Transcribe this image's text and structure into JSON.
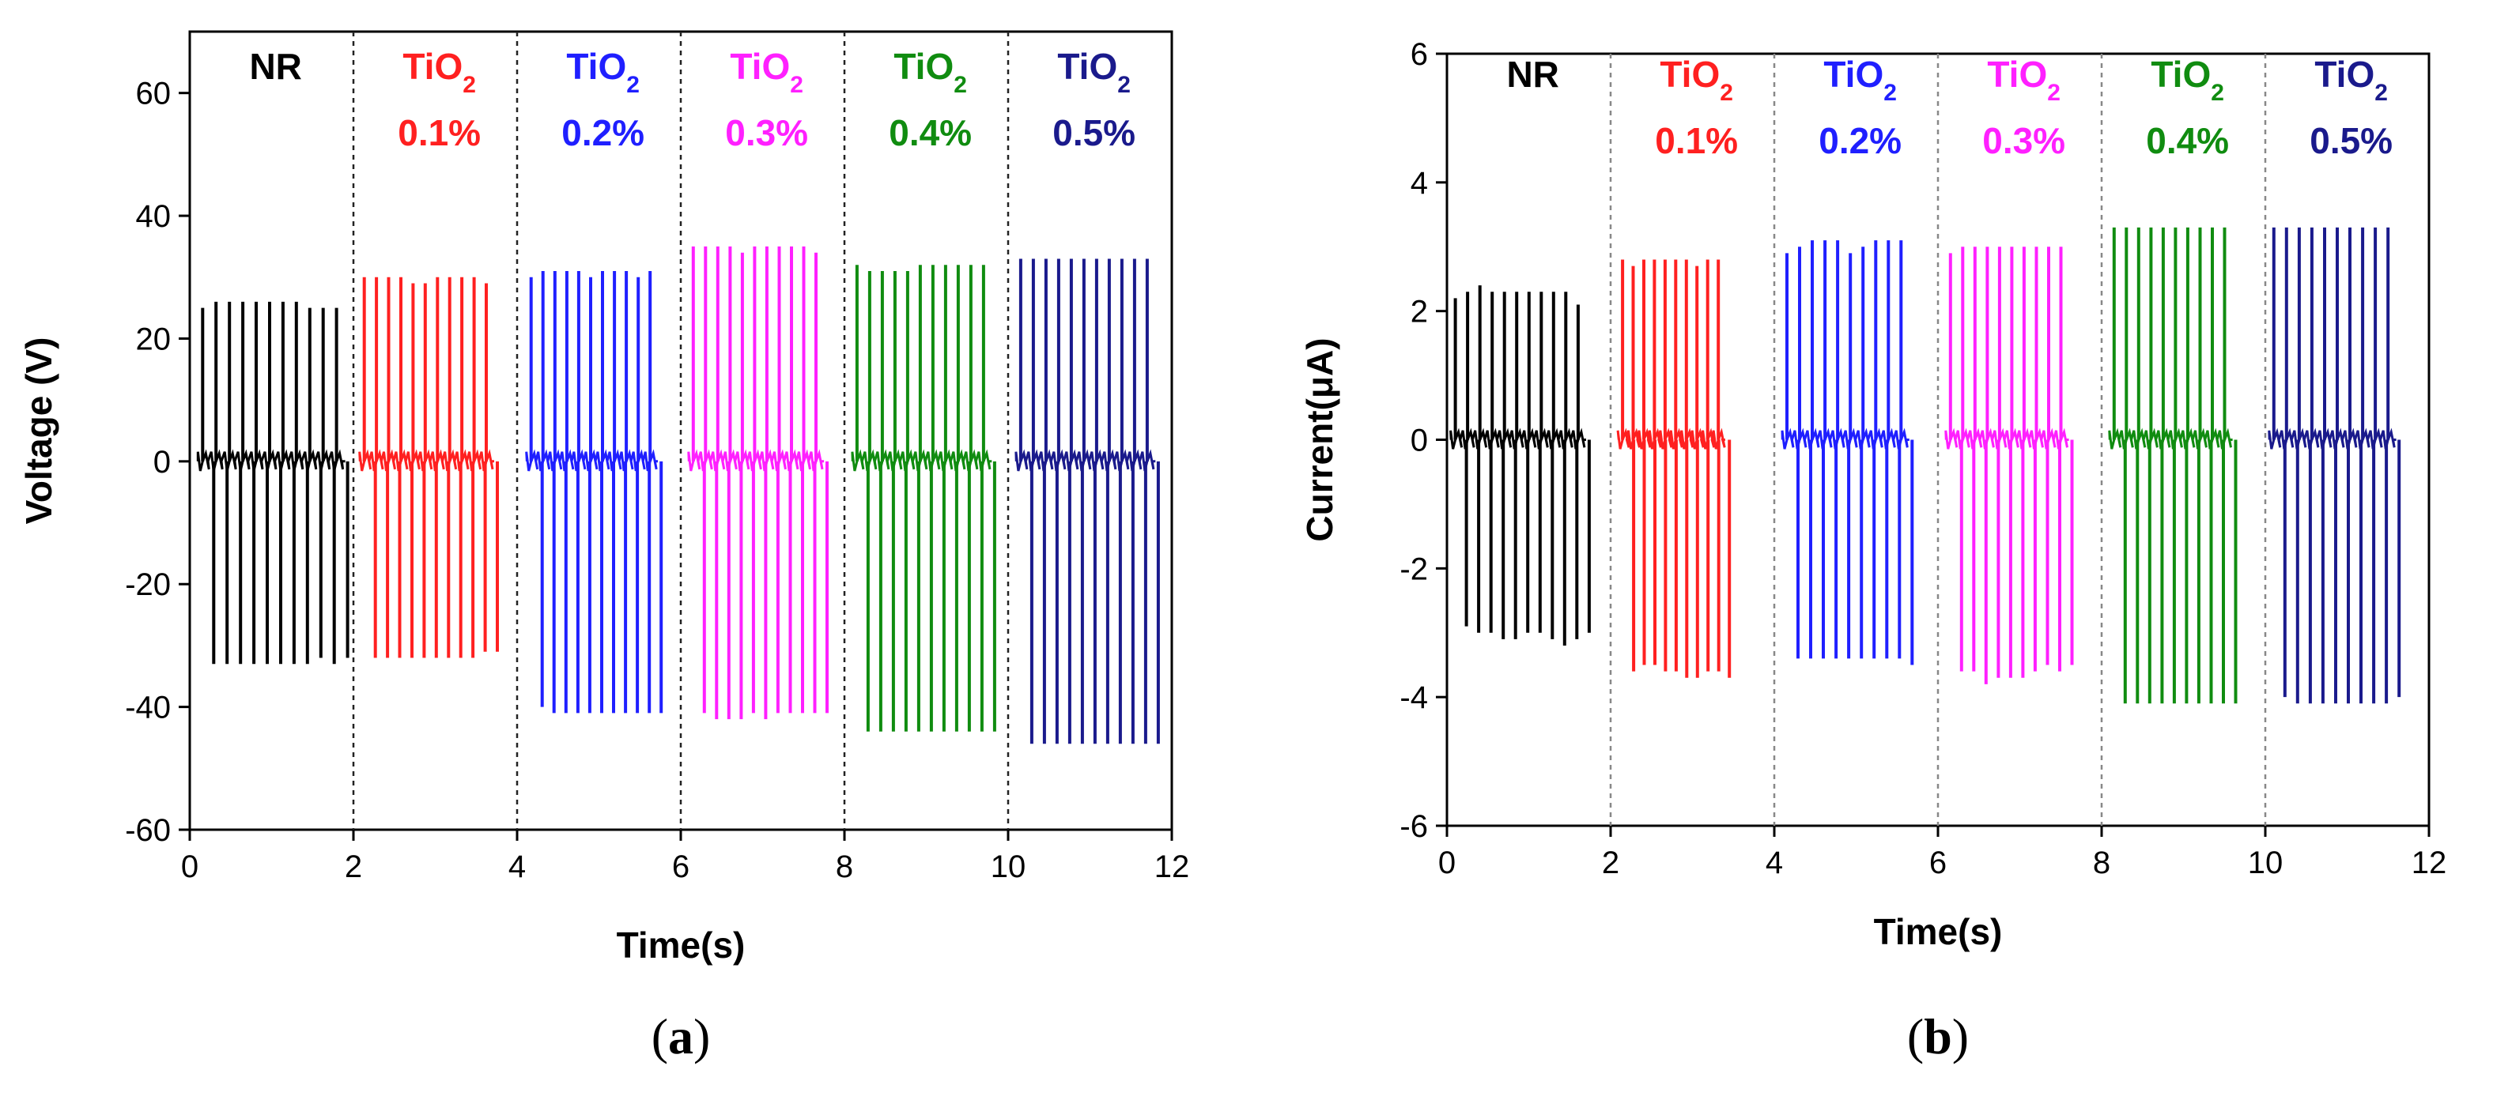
{
  "chart_data": [
    {
      "type": "line",
      "panel_label": "(a)",
      "title": "",
      "xlabel": "Time(s)",
      "ylabel": "Voltage (V)",
      "xlim": [
        0,
        12
      ],
      "ylim": [
        -60,
        70
      ],
      "xticks": [
        "0",
        "2",
        "4",
        "6",
        "8",
        "10",
        "12"
      ],
      "yticks": [
        "-60",
        "-40",
        "-20",
        "0",
        "20",
        "40",
        "60"
      ],
      "ytick_values": [
        -60,
        -40,
        -20,
        0,
        20,
        40,
        60
      ],
      "separators": [
        2,
        4,
        6,
        8,
        10
      ],
      "groups": [
        {
          "name": "NR",
          "line1": "NR",
          "line2": "",
          "color": "#000000",
          "label_center": 1.05,
          "t_start": 0.1,
          "t_end": 1.9,
          "pos_peaks": [
            25,
            26,
            26,
            26,
            26,
            26,
            26,
            26,
            25,
            25,
            25
          ],
          "neg_peaks": [
            -33,
            -33,
            -33,
            -33,
            -33,
            -33,
            -33,
            -33,
            -32,
            -33,
            -32
          ]
        },
        {
          "name": "TiO2 0.1%",
          "line1": "TiO",
          "sub": "2",
          "line2": "0.1%",
          "color": "#ff2020",
          "label_center": 3.05,
          "t_start": 2.08,
          "t_end": 3.72,
          "pos_peaks": [
            30,
            30,
            30,
            30,
            29,
            29,
            30,
            30,
            30,
            30,
            29
          ],
          "neg_peaks": [
            -32,
            -32,
            -32,
            -32,
            -32,
            -32,
            -32,
            -32,
            -32,
            -31,
            -31
          ]
        },
        {
          "name": "TiO2 0.2%",
          "line1": "TiO",
          "sub": "2",
          "line2": "0.2%",
          "color": "#1f1fff",
          "label_center": 5.05,
          "t_start": 4.12,
          "t_end": 5.72,
          "pos_peaks": [
            30,
            31,
            31,
            31,
            31,
            30,
            31,
            31,
            31,
            30,
            31
          ],
          "neg_peaks": [
            -40,
            -41,
            -41,
            -41,
            -41,
            -41,
            -41,
            -41,
            -41,
            -41,
            -41
          ]
        },
        {
          "name": "TiO2 0.3%",
          "line1": "TiO",
          "sub": "2",
          "line2": "0.3%",
          "color": "#ff20ff",
          "label_center": 7.05,
          "t_start": 6.1,
          "t_end": 7.75,
          "pos_peaks": [
            35,
            35,
            35,
            35,
            34,
            35,
            35,
            35,
            35,
            35,
            34
          ],
          "neg_peaks": [
            -41,
            -42,
            -42,
            -42,
            -41,
            -42,
            -41,
            -41,
            -41,
            -41,
            -41
          ]
        },
        {
          "name": "TiO2 0.4%",
          "line1": "TiO",
          "sub": "2",
          "line2": "0.4%",
          "color": "#108c10",
          "label_center": 9.05,
          "t_start": 8.1,
          "t_end": 9.8,
          "pos_peaks": [
            32,
            31,
            31,
            31,
            31,
            32,
            32,
            32,
            32,
            32,
            32
          ],
          "neg_peaks": [
            -44,
            -44,
            -44,
            -44,
            -44,
            -44,
            -44,
            -44,
            -44,
            -44,
            -44
          ]
        },
        {
          "name": "TiO2 0.5%",
          "line1": "TiO",
          "sub": "2",
          "line2": "0.5%",
          "color": "#1a1a8c",
          "label_center": 11.05,
          "t_start": 10.1,
          "t_end": 11.8,
          "pos_peaks": [
            33,
            33,
            33,
            33,
            33,
            33,
            33,
            33,
            33,
            33,
            33
          ],
          "neg_peaks": [
            -46,
            -46,
            -46,
            -46,
            -46,
            -46,
            -46,
            -46,
            -46,
            -46,
            -46
          ]
        }
      ]
    },
    {
      "type": "line",
      "panel_label": "(b)",
      "title": "",
      "xlabel": "Time(s)",
      "ylabel": "Current(μA)",
      "xlim": [
        0,
        12
      ],
      "ylim": [
        -6,
        6
      ],
      "xticks": [
        "0",
        "2",
        "4",
        "6",
        "8",
        "10",
        "12"
      ],
      "yticks": [
        "-6",
        "-4",
        "-2",
        "0",
        "2",
        "4",
        "6"
      ],
      "ytick_values": [
        -6,
        -4,
        -2,
        0,
        2,
        4,
        6
      ],
      "separators": [
        2,
        4,
        6,
        8,
        10
      ],
      "groups": [
        {
          "name": "NR",
          "line1": "NR",
          "line2": "",
          "color": "#000000",
          "label_center": 1.05,
          "t_start": 0.05,
          "t_end": 1.7,
          "pos_peaks": [
            2.2,
            2.3,
            2.4,
            2.3,
            2.3,
            2.3,
            2.3,
            2.3,
            2.3,
            2.3,
            2.1
          ],
          "neg_peaks": [
            -2.9,
            -3.0,
            -3.0,
            -3.1,
            -3.1,
            -3.0,
            -3.0,
            -3.1,
            -3.2,
            -3.1,
            -3.0
          ]
        },
        {
          "name": "TiO2 0.1%",
          "line1": "TiO",
          "sub": "2",
          "line2": "0.1%",
          "color": "#ff2020",
          "label_center": 3.05,
          "t_start": 2.1,
          "t_end": 3.4,
          "pos_peaks": [
            2.8,
            2.7,
            2.8,
            2.8,
            2.8,
            2.8,
            2.8,
            2.7,
            2.8,
            2.8
          ],
          "neg_peaks": [
            -3.6,
            -3.5,
            -3.5,
            -3.6,
            -3.6,
            -3.7,
            -3.7,
            -3.6,
            -3.6,
            -3.7
          ]
        },
        {
          "name": "TiO2 0.2%",
          "line1": "TiO",
          "sub": "2",
          "line2": "0.2%",
          "color": "#1f1fff",
          "label_center": 5.05,
          "t_start": 4.1,
          "t_end": 5.65,
          "pos_peaks": [
            2.9,
            3.0,
            3.1,
            3.1,
            3.1,
            2.9,
            3.0,
            3.1,
            3.1,
            3.1
          ],
          "neg_peaks": [
            -3.4,
            -3.4,
            -3.4,
            -3.4,
            -3.4,
            -3.4,
            -3.4,
            -3.4,
            -3.4,
            -3.5
          ]
        },
        {
          "name": "TiO2 0.3%",
          "line1": "TiO",
          "sub": "2",
          "line2": "0.3%",
          "color": "#ff20ff",
          "label_center": 7.05,
          "t_start": 6.1,
          "t_end": 7.6,
          "pos_peaks": [
            2.9,
            3.0,
            3.0,
            3.0,
            3.0,
            3.0,
            3.0,
            3.0,
            3.0,
            3.0
          ],
          "neg_peaks": [
            -3.6,
            -3.6,
            -3.8,
            -3.7,
            -3.7,
            -3.7,
            -3.6,
            -3.5,
            -3.6,
            -3.5
          ]
        },
        {
          "name": "TiO2 0.4%",
          "line1": "TiO",
          "sub": "2",
          "line2": "0.4%",
          "color": "#108c10",
          "label_center": 9.05,
          "t_start": 8.1,
          "t_end": 9.6,
          "pos_peaks": [
            3.3,
            3.3,
            3.3,
            3.3,
            3.3,
            3.3,
            3.3,
            3.3,
            3.3,
            3.3
          ],
          "neg_peaks": [
            -4.1,
            -4.1,
            -4.1,
            -4.1,
            -4.1,
            -4.1,
            -4.1,
            -4.1,
            -4.1,
            -4.1
          ]
        },
        {
          "name": "TiO2 0.5%",
          "line1": "TiO",
          "sub": "2",
          "line2": "0.5%",
          "color": "#1a1a8c",
          "label_center": 11.05,
          "t_start": 10.05,
          "t_end": 11.6,
          "pos_peaks": [
            3.3,
            3.3,
            3.3,
            3.3,
            3.3,
            3.3,
            3.3,
            3.3,
            3.3,
            3.3
          ],
          "neg_peaks": [
            -4.0,
            -4.1,
            -4.1,
            -4.1,
            -4.1,
            -4.1,
            -4.1,
            -4.1,
            -4.1,
            -4.0
          ]
        }
      ]
    }
  ]
}
